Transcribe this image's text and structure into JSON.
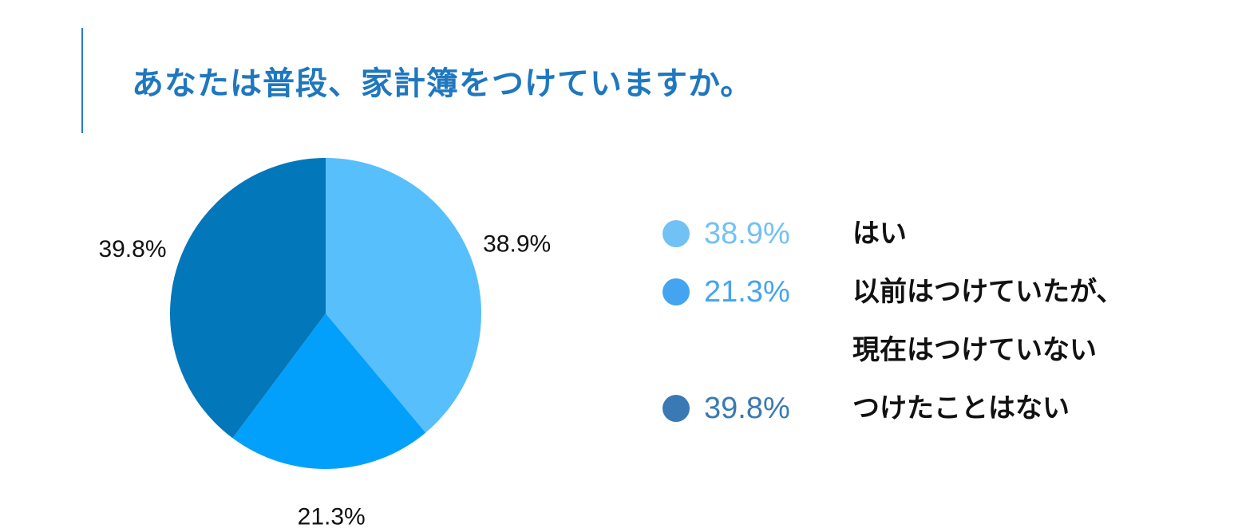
{
  "title": "あなたは普段、家計簿をつけていますか。",
  "chart_data": {
    "type": "pie",
    "title": "あなたは普段、家計簿をつけていますか。",
    "slices": [
      {
        "label": "はい",
        "label_line1": "はい",
        "label_line2": "",
        "value": 38.9,
        "value_text": "38.9%",
        "color": "#57bffb",
        "legend_color": "#72c1f5"
      },
      {
        "label": "以前はつけていたが、現在はつけていない",
        "label_line1": "以前はつけていたが、",
        "label_line2": "現在はつけていない",
        "value": 21.3,
        "value_text": "21.3%",
        "color": "#03a0fb",
        "legend_color": "#45a4ef"
      },
      {
        "label": "つけたことはない",
        "label_line1": "つけたことはない",
        "label_line2": "",
        "value": 39.8,
        "value_text": "39.8%",
        "color": "#0277b9",
        "legend_color": "#3a79b4"
      }
    ],
    "legend_position": "right",
    "data_labels": "outside"
  }
}
